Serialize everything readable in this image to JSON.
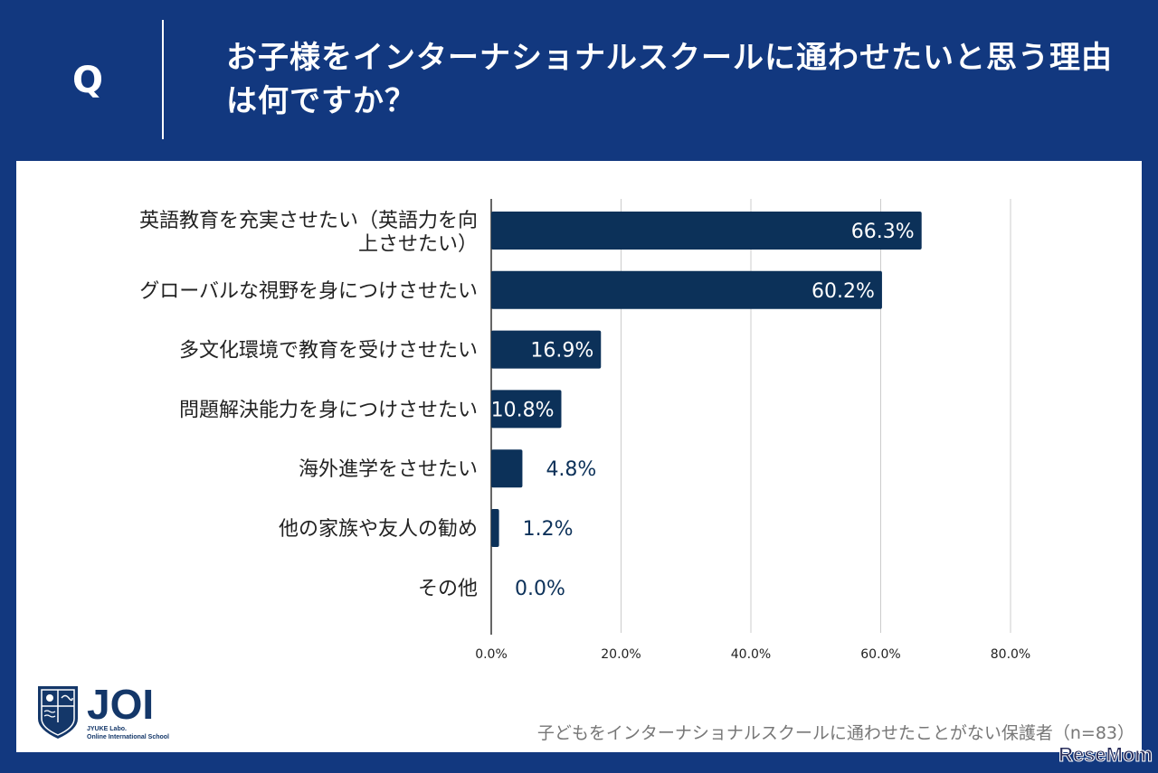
{
  "header": {
    "q_label": "Q",
    "title": "お子様をインターナショナルスクールに通わせたいと思う理由は何ですか？"
  },
  "chart_data": {
    "type": "bar",
    "orientation": "horizontal",
    "categories": [
      "英語教育を充実させたい（英語力を向上させたい）",
      "グローバルな視野を身につけさせたい",
      "多文化環境で教育を受けさせたい",
      "問題解決能力を身につけさせたい",
      "海外進学をさせたい",
      "他の家族や友人の勧め",
      "その他"
    ],
    "category_lines": [
      [
        "英語教育を充実させたい（英語力を向",
        "上させたい）"
      ],
      [
        "グローバルな視野を身につけさせたい"
      ],
      [
        "多文化環境で教育を受けさせたい"
      ],
      [
        "問題解決能力を身につけさせたい"
      ],
      [
        "海外進学をさせたい"
      ],
      [
        "他の家族や友人の勧め"
      ],
      [
        "その他"
      ]
    ],
    "values": [
      66.3,
      60.2,
      16.9,
      10.8,
      4.8,
      1.2,
      0.0
    ],
    "data_labels": [
      "66.3%",
      "60.2%",
      "16.9%",
      "10.8%",
      "4.8%",
      "1.2%",
      "0.0%"
    ],
    "xlim": [
      0,
      80
    ],
    "ticks": [
      "0.0%",
      "20.0%",
      "40.0%",
      "60.0%",
      "80.0%"
    ],
    "tick_values": [
      0,
      20,
      40,
      60,
      80
    ],
    "grid": true,
    "bar_color": "#0c3159"
  },
  "footer": {
    "note": "子どもをインターナショナルスクールに通わせたことがない保護者（n=83）",
    "logo_text": "JOI",
    "logo_sub1": "JYUKE Labo.",
    "logo_sub2": "Online International School",
    "watermark": "ReseMom"
  }
}
